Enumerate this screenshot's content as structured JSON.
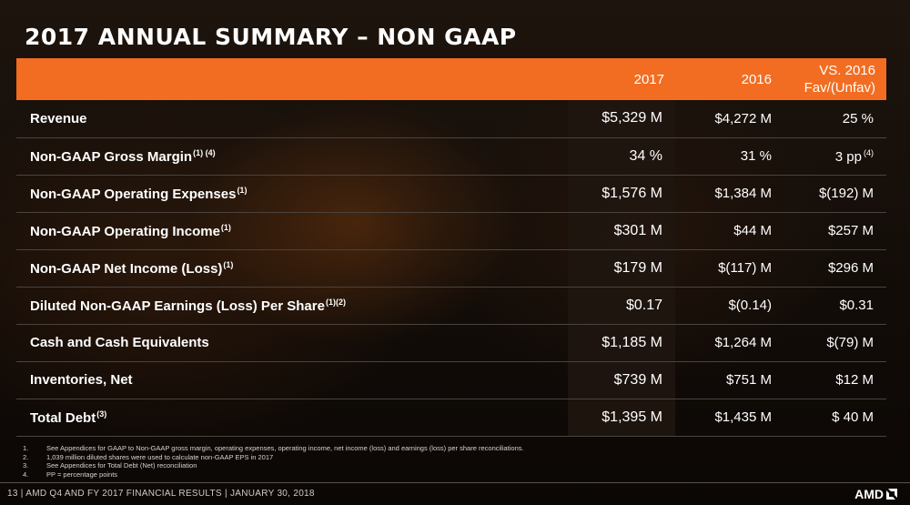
{
  "slide": {
    "title": "2017 ANNUAL SUMMARY – NON GAAP"
  },
  "table": {
    "headers": {
      "col1": "2017",
      "col2": "2016",
      "col3_line1": "VS. 2016",
      "col3_line2": "Fav/(Unfav)"
    },
    "rows": [
      {
        "label": "Revenue",
        "sup": "",
        "v2017": "$5,329 M",
        "v2016": "$4,272 M",
        "fav": "25 %",
        "fav_sup": ""
      },
      {
        "label": "Non-GAAP Gross Margin",
        "sup": "(1) (4)",
        "v2017": "34 %",
        "v2016": "31 %",
        "fav": "3 pp",
        "fav_sup": "(4)"
      },
      {
        "label": "Non-GAAP Operating Expenses",
        "sup": "(1)",
        "v2017": "$1,576 M",
        "v2016": "$1,384 M",
        "fav": "$(192) M",
        "fav_sup": ""
      },
      {
        "label": "Non-GAAP Operating Income",
        "sup": "(1)",
        "v2017": "$301 M",
        "v2016": "$44 M",
        "fav": "$257 M",
        "fav_sup": ""
      },
      {
        "label": "Non-GAAP Net Income (Loss)",
        "sup": "(1)",
        "v2017": "$179 M",
        "v2016": "$(117) M",
        "fav": "$296 M",
        "fav_sup": ""
      },
      {
        "label": "Diluted Non-GAAP Earnings (Loss) Per Share",
        "sup": "(1)(2)",
        "v2017": "$0.17",
        "v2016": "$(0.14)",
        "fav": "$0.31",
        "fav_sup": ""
      },
      {
        "label": "Cash and Cash Equivalents",
        "sup": "",
        "v2017": "$1,185 M",
        "v2016": "$1,264 M",
        "fav": "$(79) M",
        "fav_sup": ""
      },
      {
        "label": "Inventories, Net",
        "sup": "",
        "v2017": "$739 M",
        "v2016": "$751 M",
        "fav": "$12 M",
        "fav_sup": ""
      },
      {
        "label": "Total Debt",
        "sup": "(3)",
        "v2017": "$1,395 M",
        "v2016": "$1,435 M",
        "fav": "$ 40 M",
        "fav_sup": ""
      }
    ]
  },
  "footnotes": [
    {
      "num": "1.",
      "text": "See Appendices for GAAP to Non-GAAP gross margin, operating expenses, operating income, net income (loss) and earnings (loss) per share reconciliations."
    },
    {
      "num": "2.",
      "text": "1,039 million diluted shares were used to calculate non-GAAP EPS in 2017"
    },
    {
      "num": "3.",
      "text": "See Appendices for Total Debt (Net) reconciliation"
    },
    {
      "num": "4.",
      "text": "PP = percentage points"
    }
  ],
  "footer": {
    "text": "13 | AMD Q4 AND FY 2017 FINANCIAL RESULTS | JANUARY 30, 2018",
    "logo": "AMD"
  },
  "colors": {
    "header_orange": "#f26d22",
    "background": "#150e09"
  }
}
